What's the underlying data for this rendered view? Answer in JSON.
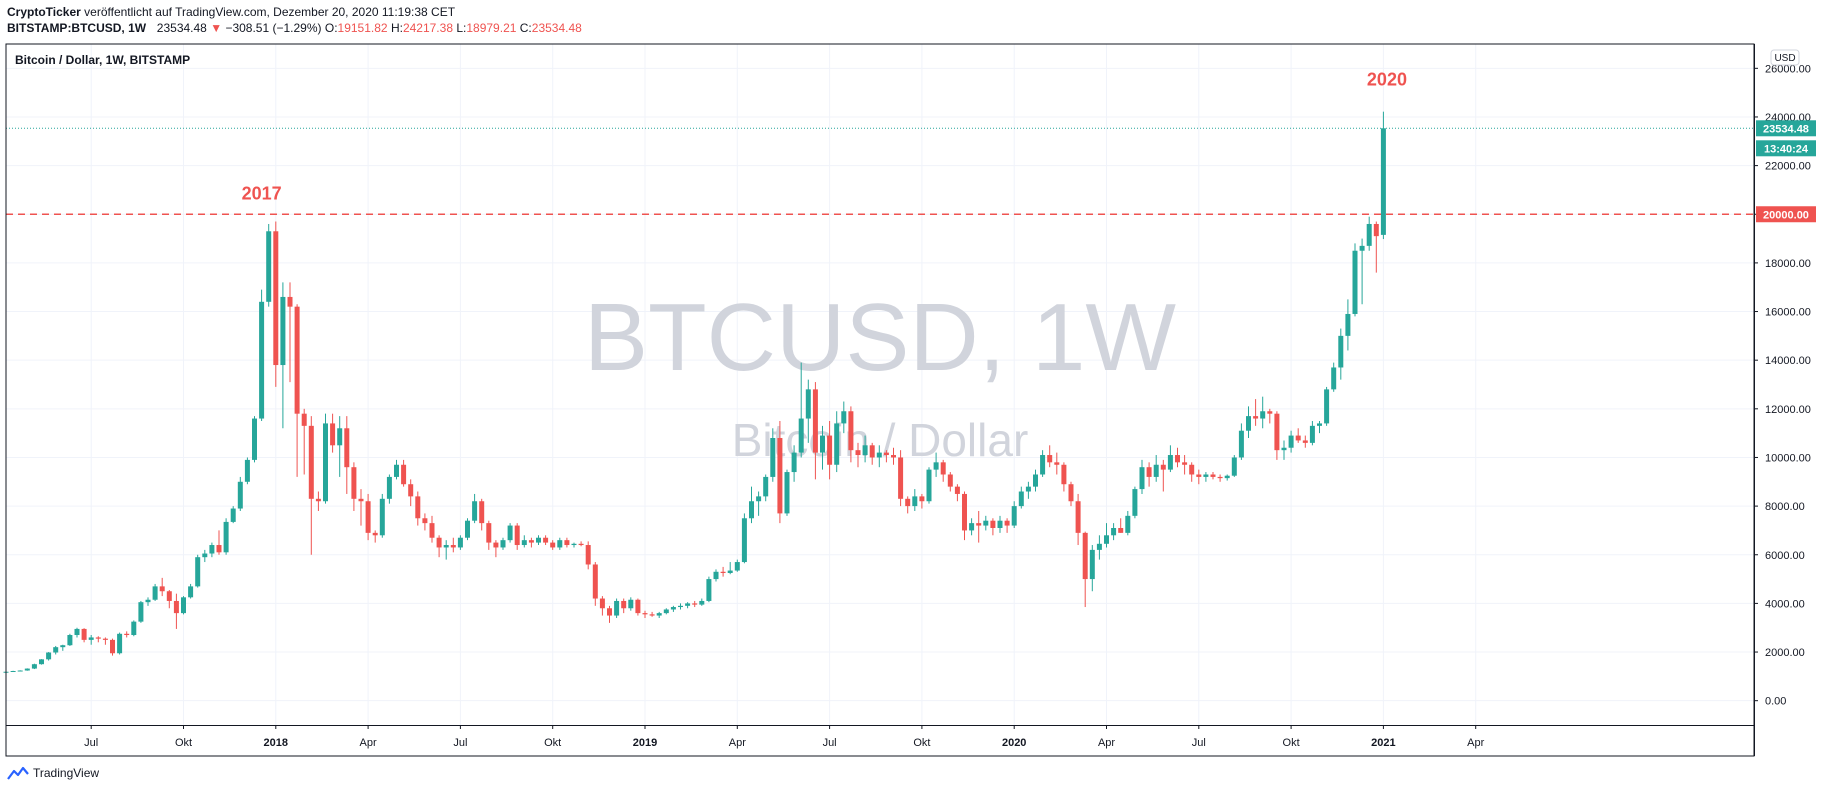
{
  "header": {
    "publisher": "CryptoTicker",
    "published_text": "veröffentlicht auf TradingView.com, Dezember 20, 2020 11:19:38 CET",
    "symbol": "BITSTAMP:BTCUSD, 1W",
    "last": "23534.48",
    "change": "−308.51 (−1.29%)",
    "o_label": "O:",
    "o_value": "19151.82",
    "h_label": "H:",
    "h_value": "24217.38",
    "l_label": "L:",
    "l_value": "18979.21",
    "c_label": "C:",
    "c_value": "23534.48"
  },
  "footer": {
    "brand": "TradingView",
    "logo_icon": "tradingview-logo-icon"
  },
  "colors": {
    "up": "#26a69a",
    "down": "#ef5350",
    "annotation": "#ef5350",
    "grid": "#f0f3fa",
    "price_line": "#26a69a",
    "level_line": "#ef5350"
  },
  "chart_data": {
    "type": "candlestick",
    "title": "Bitcoin / Dollar, 1W, BITSTAMP",
    "watermark": "BTCUSD, 1W",
    "watermark_sub": "Bitcoin / Dollar",
    "currency_badge": "USD",
    "ylim": [
      -1000,
      27000
    ],
    "y_ticks": [
      0,
      2000,
      4000,
      6000,
      8000,
      10000,
      12000,
      14000,
      16000,
      18000,
      20000,
      22000,
      24000,
      26000
    ],
    "y_tick_labels": [
      "0.00",
      "2000.00",
      "4000.00",
      "6000.00",
      "8000.00",
      "10000.00",
      "12000.00",
      "14000.00",
      "16000.00",
      "18000.00",
      "20000.00",
      "22000.00",
      "24000.00",
      "26000.00"
    ],
    "x_ticks": [
      {
        "label": "Jul",
        "week": 12,
        "bold": false
      },
      {
        "label": "Okt",
        "week": 25,
        "bold": false
      },
      {
        "label": "2018",
        "week": 38,
        "bold": true
      },
      {
        "label": "Apr",
        "week": 51,
        "bold": false
      },
      {
        "label": "Jul",
        "week": 64,
        "bold": false
      },
      {
        "label": "Okt",
        "week": 77,
        "bold": false
      },
      {
        "label": "2019",
        "week": 90,
        "bold": true
      },
      {
        "label": "Apr",
        "week": 103,
        "bold": false
      },
      {
        "label": "Jul",
        "week": 116,
        "bold": false
      },
      {
        "label": "Okt",
        "week": 129,
        "bold": false
      },
      {
        "label": "2020",
        "week": 142,
        "bold": true
      },
      {
        "label": "Apr",
        "week": 155,
        "bold": false
      },
      {
        "label": "Jul",
        "week": 168,
        "bold": false
      },
      {
        "label": "Okt",
        "week": 181,
        "bold": false
      },
      {
        "label": "2021",
        "week": 194,
        "bold": true
      },
      {
        "label": "Apr",
        "week": 207,
        "bold": false
      }
    ],
    "current_price": 23534.48,
    "current_price_label": "23534.48",
    "countdown_label": "13:40:24",
    "horizontal_level": 20000,
    "horizontal_level_label": "20000.00",
    "annotations": [
      {
        "text": "2017",
        "week": 36,
        "y": 20600
      },
      {
        "text": "2020",
        "week": 194.5,
        "y": 25300
      }
    ],
    "candles": [
      [
        1180,
        1200,
        1160,
        1190
      ],
      [
        1190,
        1230,
        1180,
        1220
      ],
      [
        1220,
        1250,
        1200,
        1240
      ],
      [
        1240,
        1330,
        1230,
        1320
      ],
      [
        1320,
        1520,
        1300,
        1500
      ],
      [
        1500,
        1710,
        1480,
        1700
      ],
      [
        1700,
        2000,
        1650,
        1980
      ],
      [
        1980,
        2250,
        1900,
        2200
      ],
      [
        2200,
        2300,
        2050,
        2280
      ],
      [
        2280,
        2750,
        2250,
        2700
      ],
      [
        2700,
        3000,
        2600,
        2950
      ],
      [
        2950,
        2980,
        2400,
        2500
      ],
      [
        2500,
        2700,
        2300,
        2600
      ],
      [
        2600,
        2650,
        2400,
        2550
      ],
      [
        2550,
        2600,
        2300,
        2500
      ],
      [
        2500,
        2550,
        1850,
        1950
      ],
      [
        1950,
        2800,
        1900,
        2750
      ],
      [
        2750,
        2850,
        2600,
        2700
      ],
      [
        2700,
        3300,
        2650,
        3250
      ],
      [
        3250,
        4100,
        3200,
        4050
      ],
      [
        4050,
        4250,
        3900,
        4150
      ],
      [
        4150,
        4800,
        4100,
        4700
      ],
      [
        4700,
        5050,
        4300,
        4500
      ],
      [
        4500,
        4550,
        3800,
        4100
      ],
      [
        4100,
        4400,
        2950,
        3600
      ],
      [
        3600,
        4300,
        3550,
        4250
      ],
      [
        4250,
        4800,
        4200,
        4700
      ],
      [
        4700,
        6000,
        4650,
        5900
      ],
      [
        5900,
        6200,
        5700,
        6050
      ],
      [
        6050,
        6500,
        5900,
        6400
      ],
      [
        6400,
        7000,
        6000,
        6100
      ],
      [
        6100,
        7500,
        6000,
        7350
      ],
      [
        7350,
        8000,
        7300,
        7900
      ],
      [
        7900,
        9200,
        7800,
        9000
      ],
      [
        9000,
        10000,
        8900,
        9900
      ],
      [
        9900,
        11700,
        9800,
        11600
      ],
      [
        11600,
        16900,
        11500,
        16400
      ],
      [
        16400,
        19600,
        16200,
        19300
      ],
      [
        19300,
        19700,
        12900,
        13800
      ],
      [
        13800,
        17200,
        11200,
        16600
      ],
      [
        16600,
        17200,
        13100,
        16200
      ],
      [
        16200,
        16300,
        9200,
        11800
      ],
      [
        11800,
        12000,
        9300,
        11300
      ],
      [
        11300,
        11700,
        6000,
        8300
      ],
      [
        8300,
        8600,
        7800,
        8200
      ],
      [
        8200,
        11800,
        8100,
        11400
      ],
      [
        11400,
        11800,
        10200,
        10500
      ],
      [
        10500,
        11700,
        9200,
        11200
      ],
      [
        11200,
        11700,
        8500,
        9600
      ],
      [
        9600,
        9800,
        7800,
        8300
      ],
      [
        8300,
        8700,
        7200,
        8200
      ],
      [
        8200,
        8500,
        6600,
        6900
      ],
      [
        6900,
        7000,
        6500,
        6800
      ],
      [
        6800,
        8500,
        6700,
        8300
      ],
      [
        8300,
        9300,
        8100,
        9200
      ],
      [
        9200,
        9900,
        9100,
        9700
      ],
      [
        9700,
        9900,
        8800,
        8900
      ],
      [
        8900,
        9100,
        8000,
        8400
      ],
      [
        8400,
        8600,
        7200,
        7500
      ],
      [
        7500,
        7700,
        7000,
        7300
      ],
      [
        7300,
        7600,
        6500,
        6700
      ],
      [
        6700,
        6800,
        5900,
        6300
      ],
      [
        6300,
        6600,
        5800,
        6400
      ],
      [
        6400,
        6700,
        6100,
        6300
      ],
      [
        6300,
        6800,
        6200,
        6700
      ],
      [
        6700,
        7500,
        6600,
        7400
      ],
      [
        7400,
        8500,
        7300,
        8200
      ],
      [
        8200,
        8300,
        7000,
        7300
      ],
      [
        7300,
        7400,
        6200,
        6500
      ],
      [
        6500,
        6600,
        5900,
        6300
      ],
      [
        6300,
        6700,
        6200,
        6600
      ],
      [
        6600,
        7300,
        6500,
        7200
      ],
      [
        7200,
        7300,
        6200,
        6400
      ],
      [
        6400,
        6800,
        6300,
        6600
      ],
      [
        6600,
        6700,
        6300,
        6500
      ],
      [
        6500,
        6800,
        6400,
        6700
      ],
      [
        6700,
        6800,
        6400,
        6500
      ],
      [
        6500,
        6600,
        6200,
        6300
      ],
      [
        6300,
        6700,
        6200,
        6600
      ],
      [
        6600,
        6700,
        6300,
        6400
      ],
      [
        6400,
        6500,
        6300,
        6450
      ],
      [
        6450,
        6550,
        6350,
        6400
      ],
      [
        6400,
        6550,
        5400,
        5600
      ],
      [
        5600,
        5700,
        3900,
        4200
      ],
      [
        4200,
        4300,
        3500,
        3800
      ],
      [
        3800,
        3900,
        3200,
        3500
      ],
      [
        3500,
        4200,
        3400,
        4100
      ],
      [
        4100,
        4200,
        3600,
        3800
      ],
      [
        3800,
        4250,
        3700,
        4150
      ],
      [
        4150,
        4200,
        3500,
        3600
      ],
      [
        3600,
        3700,
        3400,
        3550
      ],
      [
        3550,
        3650,
        3450,
        3500
      ],
      [
        3500,
        3650,
        3400,
        3600
      ],
      [
        3600,
        3800,
        3550,
        3750
      ],
      [
        3750,
        3900,
        3650,
        3850
      ],
      [
        3850,
        4000,
        3750,
        3900
      ],
      [
        3900,
        4050,
        3800,
        4000
      ],
      [
        4000,
        4100,
        3850,
        3950
      ],
      [
        3950,
        4200,
        3900,
        4100
      ],
      [
        4100,
        5100,
        4050,
        5000
      ],
      [
        5000,
        5400,
        4900,
        5300
      ],
      [
        5300,
        5500,
        5100,
        5250
      ],
      [
        5250,
        5700,
        5200,
        5350
      ],
      [
        5350,
        5800,
        5300,
        5700
      ],
      [
        5700,
        7700,
        5650,
        7500
      ],
      [
        7500,
        8800,
        7300,
        8200
      ],
      [
        8200,
        8600,
        7600,
        8400
      ],
      [
        8400,
        9300,
        8200,
        9200
      ],
      [
        9200,
        11200,
        9000,
        10800
      ],
      [
        10800,
        11500,
        7300,
        7700
      ],
      [
        7700,
        9500,
        7600,
        9400
      ],
      [
        9400,
        10500,
        9000,
        10200
      ],
      [
        10200,
        13900,
        10000,
        11600
      ],
      [
        11600,
        13200,
        10600,
        12800
      ],
      [
        12800,
        13100,
        9100,
        10200
      ],
      [
        10200,
        11300,
        9500,
        10900
      ],
      [
        10900,
        11500,
        9100,
        9700
      ],
      [
        9700,
        11900,
        9400,
        11400
      ],
      [
        11400,
        12300,
        11000,
        11900
      ],
      [
        11900,
        12100,
        9800,
        10300
      ],
      [
        10300,
        10600,
        9600,
        10100
      ],
      [
        10100,
        10900,
        9800,
        10500
      ],
      [
        10500,
        10600,
        9700,
        10000
      ],
      [
        10000,
        10500,
        9600,
        10200
      ],
      [
        10200,
        10300,
        9800,
        10100
      ],
      [
        10100,
        10400,
        9700,
        10000
      ],
      [
        10000,
        10300,
        8000,
        8300
      ],
      [
        8300,
        8400,
        7700,
        8000
      ],
      [
        8000,
        8700,
        7800,
        8400
      ],
      [
        8400,
        8500,
        7900,
        8200
      ],
      [
        8200,
        9600,
        8100,
        9500
      ],
      [
        9500,
        10200,
        9200,
        9800
      ],
      [
        9800,
        9900,
        9000,
        9300
      ],
      [
        9300,
        9400,
        8600,
        8800
      ],
      [
        8800,
        8900,
        8200,
        8500
      ],
      [
        8500,
        8600,
        6600,
        7000
      ],
      [
        7000,
        7500,
        6800,
        7300
      ],
      [
        7300,
        7800,
        6500,
        7200
      ],
      [
        7200,
        7600,
        7000,
        7400
      ],
      [
        7400,
        7500,
        6800,
        7100
      ],
      [
        7100,
        7600,
        6900,
        7400
      ],
      [
        7400,
        7500,
        6900,
        7200
      ],
      [
        7200,
        8200,
        7100,
        8000
      ],
      [
        8000,
        8800,
        7900,
        8600
      ],
      [
        8600,
        9000,
        8300,
        8800
      ],
      [
        8800,
        9500,
        8600,
        9300
      ],
      [
        9300,
        10300,
        9200,
        10100
      ],
      [
        10100,
        10500,
        9600,
        9800
      ],
      [
        9800,
        10200,
        9300,
        9700
      ],
      [
        9700,
        9800,
        8600,
        8900
      ],
      [
        8900,
        9000,
        8000,
        8200
      ],
      [
        8200,
        8500,
        6400,
        6900
      ],
      [
        6900,
        6950,
        3850,
        5000
      ],
      [
        5000,
        6400,
        4500,
        6200
      ],
      [
        6200,
        6800,
        5800,
        6450
      ],
      [
        6450,
        7300,
        6300,
        6800
      ],
      [
        6800,
        7300,
        6600,
        7100
      ],
      [
        7100,
        7500,
        6900,
        6900
      ],
      [
        6900,
        7800,
        6800,
        7600
      ],
      [
        7600,
        8800,
        7500,
        8700
      ],
      [
        8700,
        9900,
        8500,
        9600
      ],
      [
        9600,
        9800,
        8800,
        9200
      ],
      [
        9200,
        10100,
        9000,
        9700
      ],
      [
        9700,
        9900,
        8600,
        9500
      ],
      [
        9500,
        10500,
        9400,
        10100
      ],
      [
        10100,
        10400,
        9600,
        9800
      ],
      [
        9800,
        10100,
        9300,
        9700
      ],
      [
        9700,
        9800,
        9000,
        9300
      ],
      [
        9300,
        9500,
        8900,
        9200
      ],
      [
        9200,
        9400,
        9000,
        9300
      ],
      [
        9300,
        9400,
        9100,
        9200
      ],
      [
        9200,
        9300,
        9000,
        9150
      ],
      [
        9150,
        9300,
        9050,
        9250
      ],
      [
        9250,
        10100,
        9200,
        10000
      ],
      [
        10000,
        11400,
        9900,
        11100
      ],
      [
        11100,
        12100,
        10800,
        11700
      ],
      [
        11700,
        12400,
        11300,
        11600
      ],
      [
        11600,
        12500,
        11200,
        11900
      ],
      [
        11900,
        12000,
        11400,
        11800
      ],
      [
        11800,
        11900,
        9900,
        10300
      ],
      [
        10300,
        10700,
        9900,
        10400
      ],
      [
        10400,
        11100,
        10200,
        10900
      ],
      [
        10900,
        11200,
        10600,
        10700
      ],
      [
        10700,
        10900,
        10400,
        10600
      ],
      [
        10600,
        11500,
        10500,
        11300
      ],
      [
        11300,
        11500,
        11000,
        11400
      ],
      [
        11400,
        12900,
        11300,
        12800
      ],
      [
        12800,
        13900,
        12700,
        13700
      ],
      [
        13700,
        15300,
        13200,
        15000
      ],
      [
        15000,
        16500,
        14400,
        15900
      ],
      [
        15900,
        18800,
        15800,
        18500
      ],
      [
        18500,
        19000,
        16300,
        18700
      ],
      [
        18700,
        19900,
        18500,
        19600
      ],
      [
        19600,
        19700,
        17600,
        19100
      ],
      [
        19151.82,
        24217.38,
        18979.21,
        23534.48
      ]
    ]
  }
}
